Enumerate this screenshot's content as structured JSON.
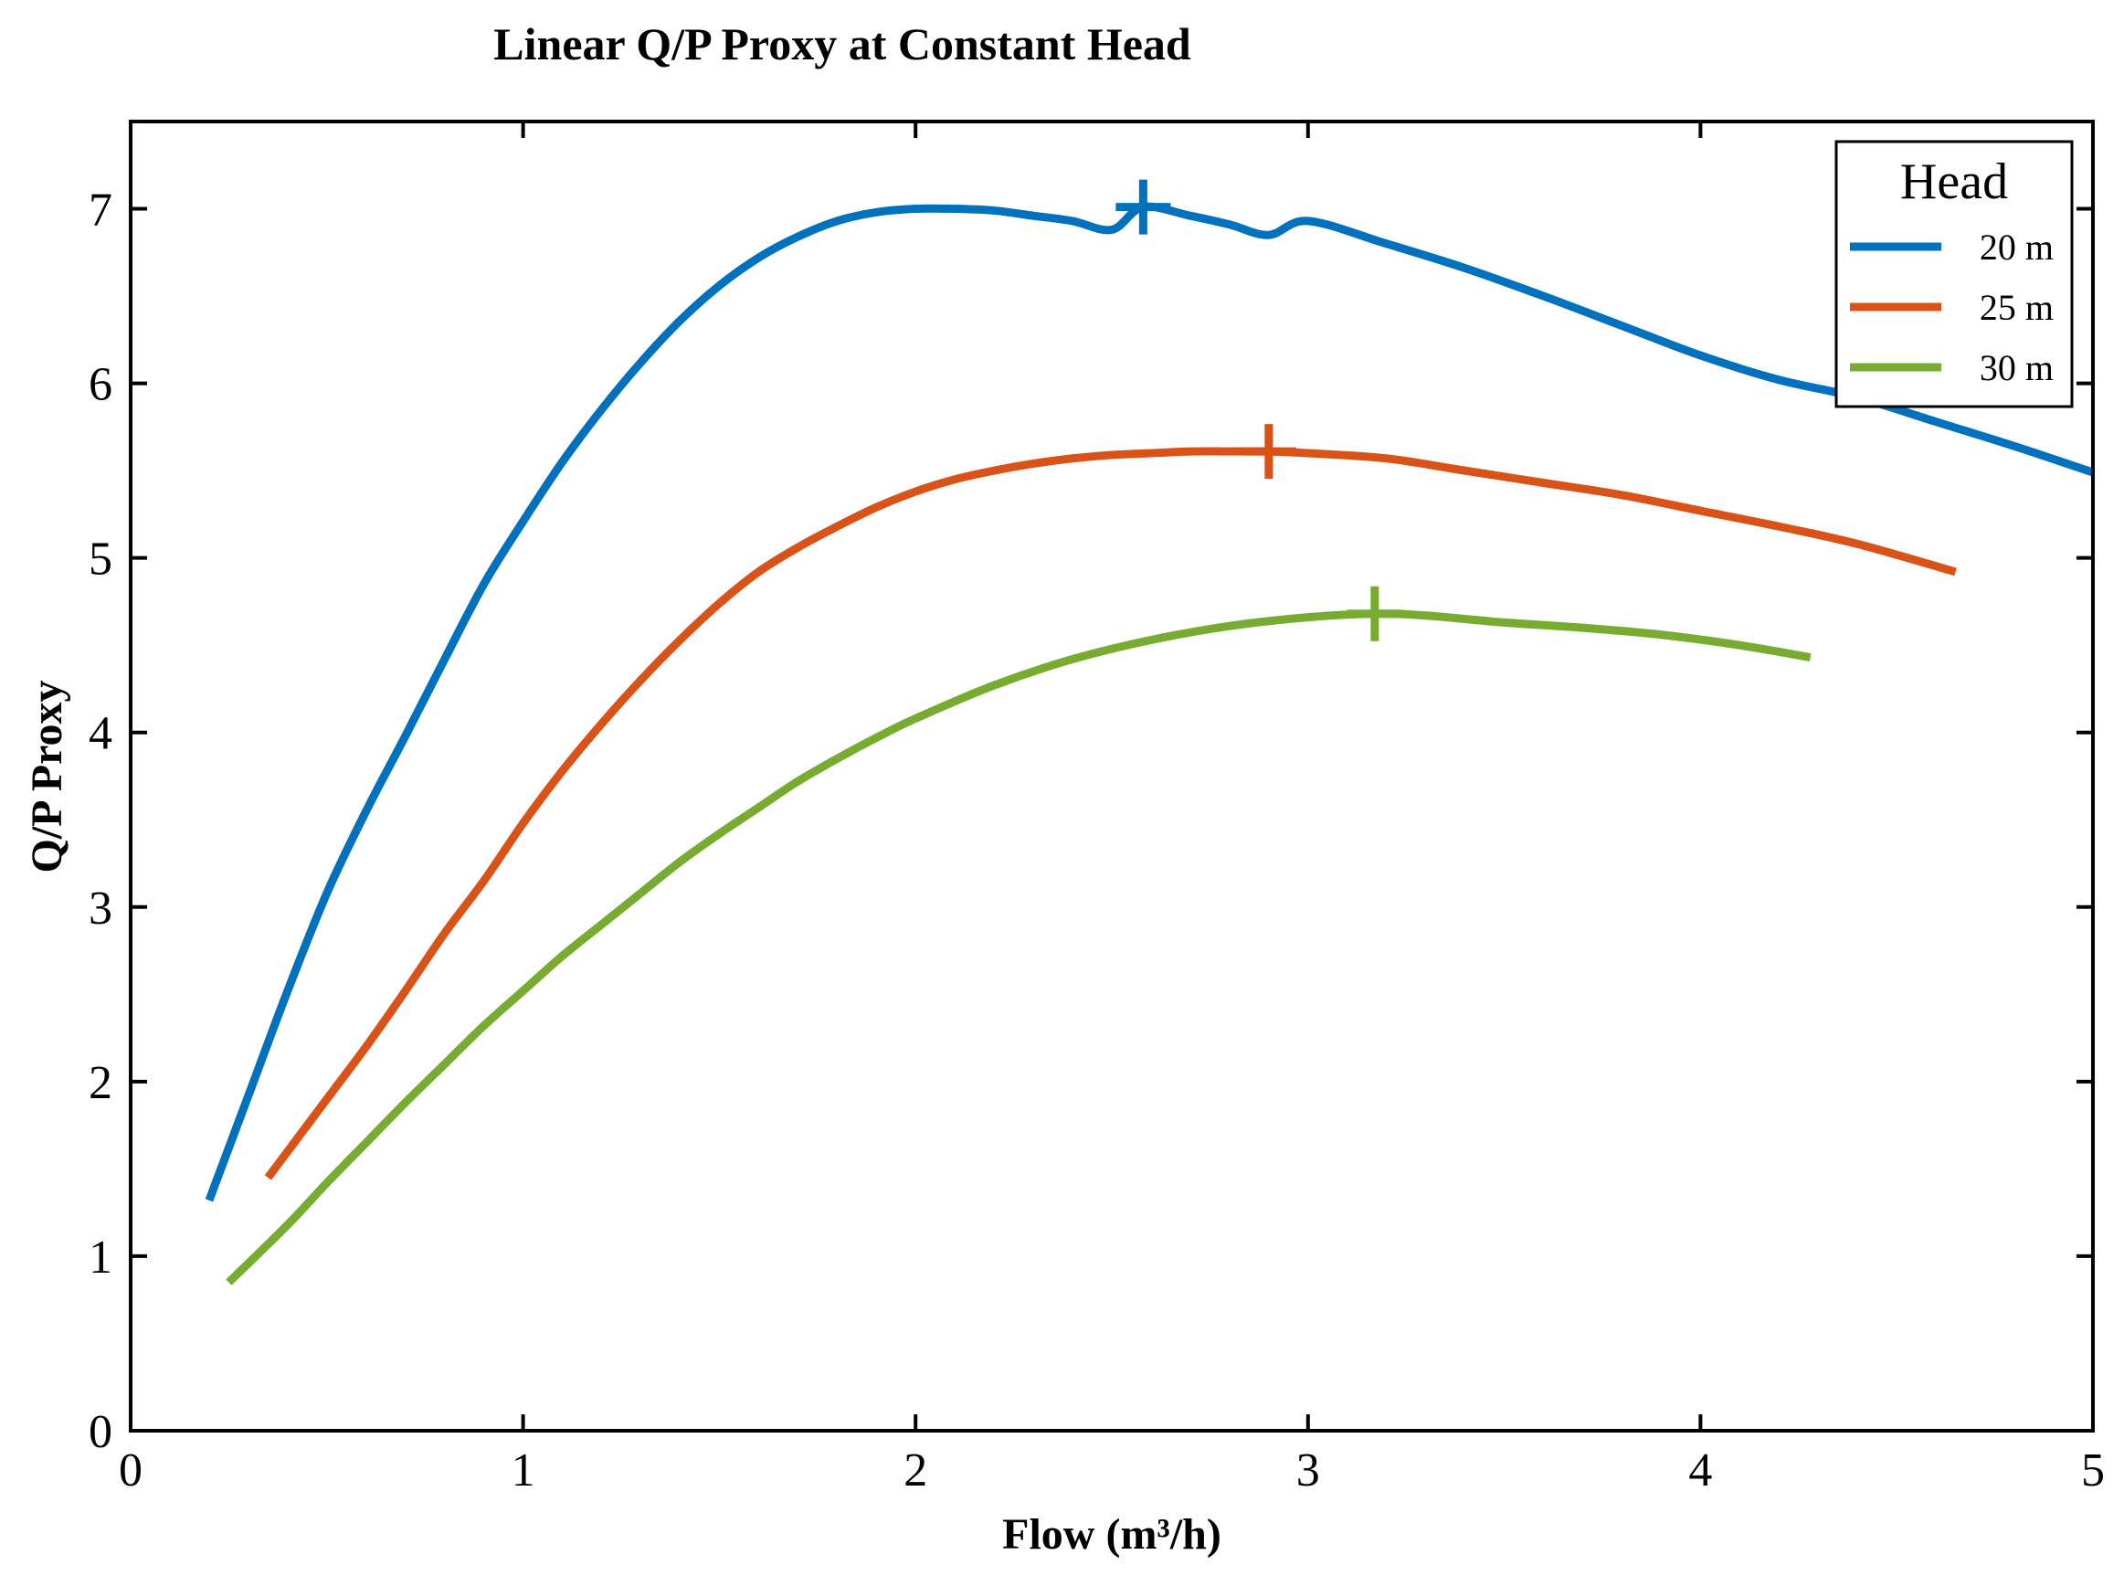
{
  "chart_data": {
    "type": "line",
    "title": "Linear Q/P Proxy at Constant Head",
    "xlabel": "Flow (m³/h)",
    "ylabel": "Q/P Proxy",
    "xlim": [
      0,
      5
    ],
    "ylim": [
      0,
      7.5
    ],
    "xticks": [
      0,
      1,
      2,
      3,
      4,
      5
    ],
    "yticks": [
      0,
      1,
      2,
      3,
      4,
      5,
      6,
      7
    ],
    "grid": false,
    "legend": {
      "title": "Head",
      "position": "top-right"
    },
    "series": [
      {
        "name": "20 m",
        "color": "#0072BD",
        "x": [
          0.2,
          0.3,
          0.4,
          0.5,
          0.6,
          0.7,
          0.8,
          0.9,
          1.0,
          1.1,
          1.2,
          1.3,
          1.4,
          1.5,
          1.6,
          1.7,
          1.8,
          1.9,
          2.0,
          2.1,
          2.2,
          2.3,
          2.4,
          2.5,
          2.58,
          2.7,
          2.8,
          2.9,
          3.0,
          3.2,
          3.4,
          3.6,
          3.8,
          4.0,
          4.2,
          4.4,
          4.6,
          4.8,
          5.0
        ],
        "values": [
          1.32,
          1.92,
          2.52,
          3.08,
          3.55,
          3.98,
          4.42,
          4.85,
          5.21,
          5.55,
          5.85,
          6.12,
          6.36,
          6.56,
          6.72,
          6.84,
          6.93,
          6.98,
          7.0,
          7.0,
          6.99,
          6.96,
          6.93,
          6.88,
          7.01,
          6.96,
          6.91,
          6.85,
          6.93,
          6.8,
          6.66,
          6.5,
          6.33,
          6.16,
          6.02,
          5.92,
          5.78,
          5.64,
          5.49
        ]
      },
      {
        "name": "25 m",
        "color": "#D95319",
        "x": [
          0.35,
          0.5,
          0.6,
          0.7,
          0.8,
          0.9,
          1.0,
          1.1,
          1.2,
          1.3,
          1.4,
          1.5,
          1.6,
          1.7,
          1.8,
          1.9,
          2.0,
          2.1,
          2.2,
          2.3,
          2.4,
          2.5,
          2.6,
          2.7,
          2.8,
          2.9,
          3.0,
          3.2,
          3.4,
          3.6,
          3.8,
          4.0,
          4.2,
          4.4,
          4.65
        ],
        "values": [
          1.45,
          1.9,
          2.2,
          2.52,
          2.85,
          3.15,
          3.48,
          3.78,
          4.05,
          4.3,
          4.53,
          4.74,
          4.92,
          5.06,
          5.18,
          5.29,
          5.38,
          5.45,
          5.5,
          5.54,
          5.57,
          5.59,
          5.6,
          5.61,
          5.61,
          5.61,
          5.6,
          5.57,
          5.5,
          5.43,
          5.36,
          5.27,
          5.18,
          5.08,
          4.92
        ]
      },
      {
        "name": "30 m",
        "color": "#77AC30",
        "x": [
          0.25,
          0.4,
          0.5,
          0.6,
          0.7,
          0.8,
          0.9,
          1.0,
          1.1,
          1.2,
          1.3,
          1.4,
          1.5,
          1.6,
          1.7,
          1.8,
          1.9,
          2.0,
          2.2,
          2.4,
          2.6,
          2.8,
          3.0,
          3.17,
          3.3,
          3.5,
          3.7,
          3.9,
          4.1,
          4.28
        ],
        "values": [
          0.85,
          1.18,
          1.42,
          1.65,
          1.88,
          2.1,
          2.32,
          2.52,
          2.72,
          2.9,
          3.08,
          3.26,
          3.42,
          3.57,
          3.72,
          3.85,
          3.97,
          4.08,
          4.27,
          4.42,
          4.53,
          4.61,
          4.66,
          4.68,
          4.67,
          4.63,
          4.6,
          4.56,
          4.5,
          4.43
        ]
      }
    ],
    "peak_markers": [
      {
        "series": "20 m",
        "x": 2.58,
        "y": 7.01
      },
      {
        "series": "25 m",
        "x": 2.9,
        "y": 5.61
      },
      {
        "series": "30 m",
        "x": 3.17,
        "y": 4.68
      }
    ]
  }
}
